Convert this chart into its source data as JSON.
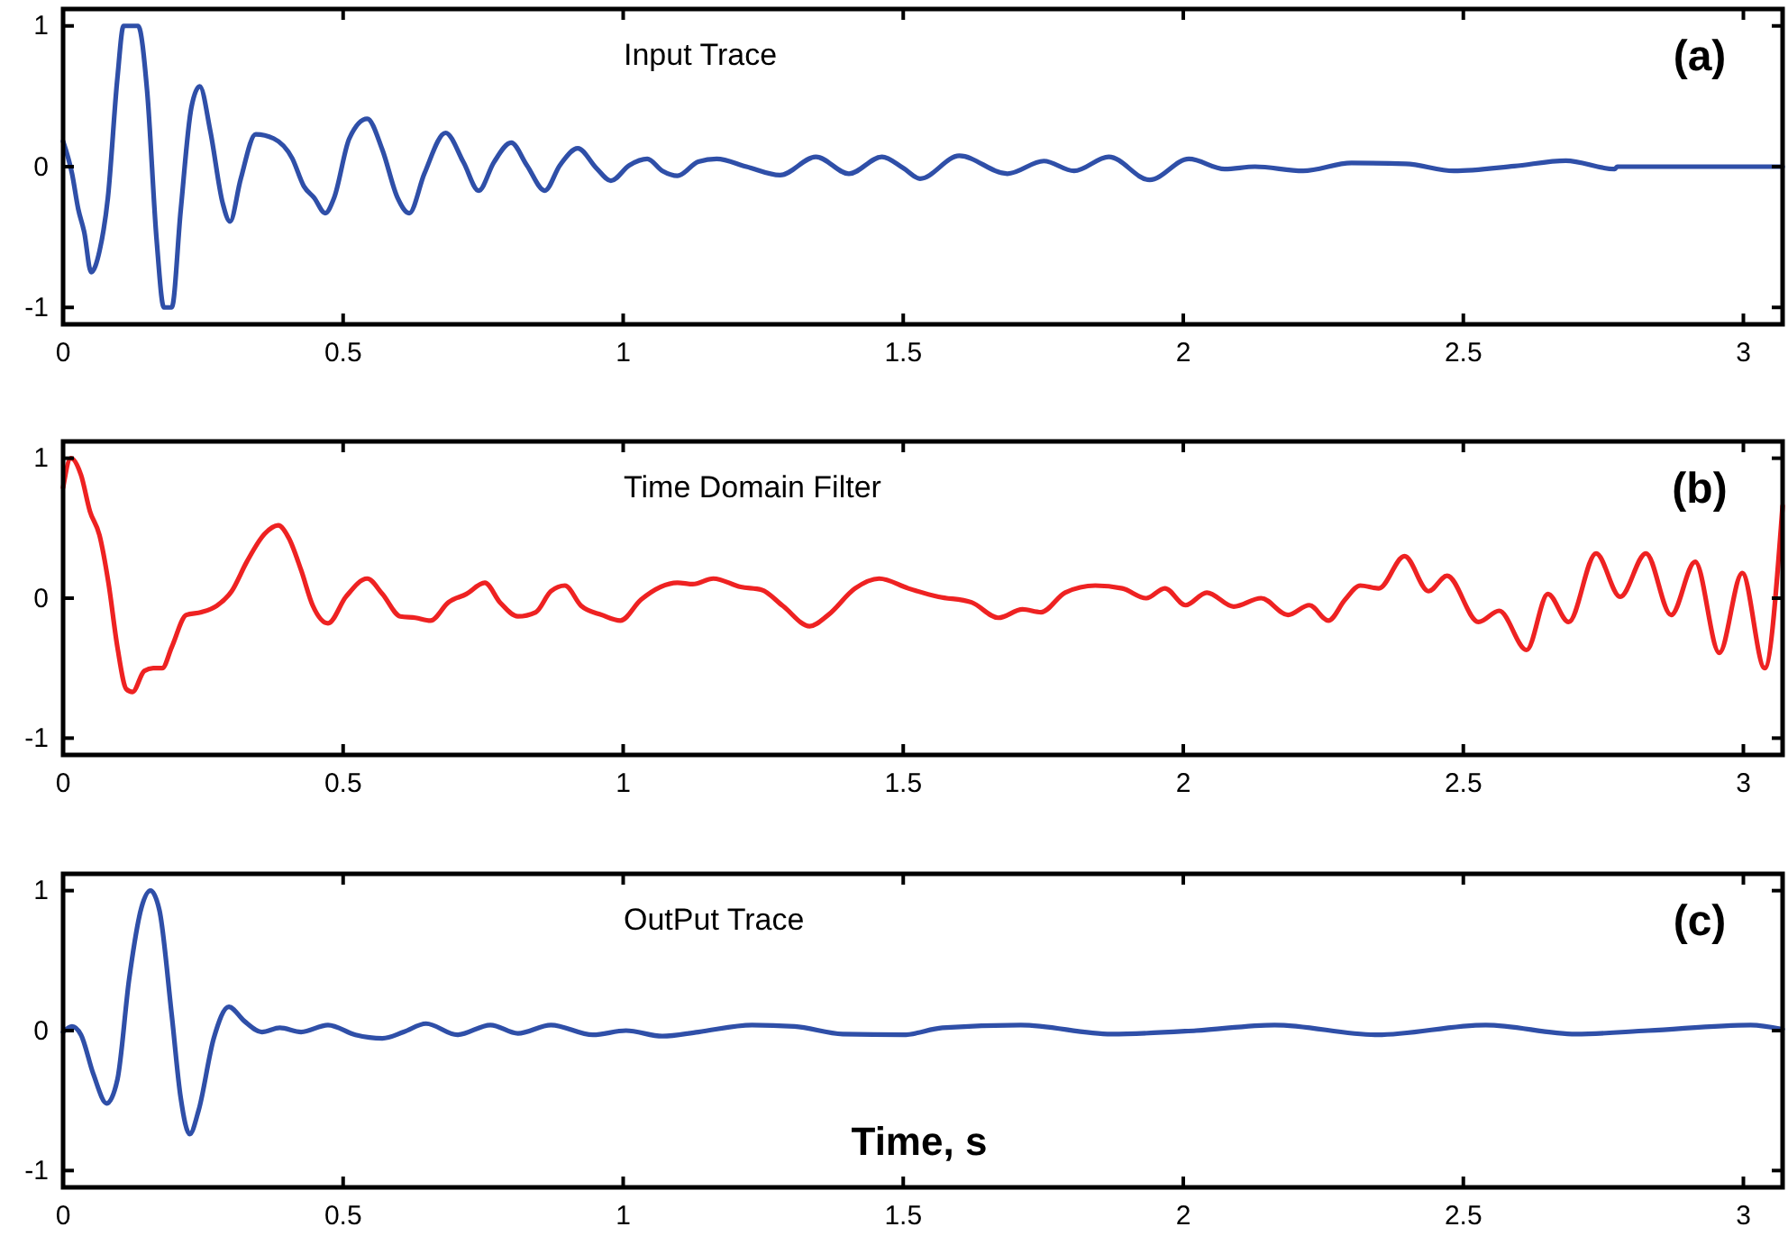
{
  "chart_data": [
    {
      "type": "line",
      "title": "Input Trace",
      "annotations": [
        "(a)"
      ],
      "xlim": [
        0,
        3.07
      ],
      "ylim": [
        -1.12,
        1.12
      ],
      "xticks": [
        0,
        0.5,
        1,
        1.5,
        2,
        2.5,
        3
      ],
      "yticks": [
        -1,
        0,
        1
      ],
      "x": [
        0,
        0.016,
        0.027,
        0.038,
        0.05,
        0.065,
        0.08,
        0.097,
        0.108,
        0.134,
        0.15,
        0.167,
        0.18,
        0.194,
        0.21,
        0.229,
        0.244,
        0.263,
        0.285,
        0.298,
        0.317,
        0.344,
        0.376,
        0.409,
        0.43,
        0.448,
        0.468,
        0.484,
        0.511,
        0.543,
        0.57,
        0.597,
        0.618,
        0.645,
        0.683,
        0.715,
        0.742,
        0.769,
        0.8,
        0.828,
        0.86,
        0.887,
        0.919,
        0.952,
        0.978,
        1.011,
        1.043,
        1.07,
        1.097,
        1.134,
        1.167,
        1.22,
        1.28,
        1.344,
        1.403,
        1.462,
        1.5,
        1.53,
        1.6,
        1.686,
        1.751,
        1.805,
        1.867,
        1.94,
        2.01,
        2.074,
        2.128,
        2.214,
        2.3,
        2.397,
        2.483,
        2.591,
        2.683,
        2.77,
        2.775,
        3.07
      ],
      "series": [
        {
          "color": "#2f4fa8",
          "values": [
            0.18,
            -0.05,
            -0.3,
            -0.47,
            -0.75,
            -0.6,
            -0.22,
            0.63,
            1.0,
            1.0,
            0.54,
            -0.52,
            -1.0,
            -1.0,
            -0.31,
            0.42,
            0.57,
            0.25,
            -0.26,
            -0.39,
            -0.09,
            0.23,
            0.2,
            0.06,
            -0.14,
            -0.22,
            -0.33,
            -0.22,
            0.2,
            0.34,
            0.12,
            -0.22,
            -0.33,
            -0.05,
            0.24,
            0.03,
            -0.17,
            0.03,
            0.17,
            0.01,
            -0.17,
            0.01,
            0.13,
            -0.01,
            -0.1,
            0.01,
            0.055,
            -0.03,
            -0.065,
            0.035,
            0.055,
            0,
            -0.06,
            0.07,
            -0.05,
            0.07,
            -0.01,
            -0.085,
            0.077,
            -0.05,
            0.04,
            -0.03,
            0.07,
            -0.094,
            0.055,
            -0.017,
            0,
            -0.03,
            0.026,
            0.02,
            -0.03,
            0.004,
            0.043,
            -0.017,
            0,
            0
          ]
        }
      ]
    },
    {
      "type": "line",
      "title": "Time Domain Filter",
      "annotations": [
        "(b)"
      ],
      "xlim": [
        0,
        3.07
      ],
      "ylim": [
        -1.12,
        1.12
      ],
      "xticks": [
        0,
        0.5,
        1,
        1.5,
        2,
        2.5,
        3
      ],
      "yticks": [
        -1,
        0,
        1
      ],
      "x": [
        0,
        0.014,
        0.032,
        0.048,
        0.065,
        0.081,
        0.097,
        0.113,
        0.124,
        0.145,
        0.161,
        0.177,
        0.194,
        0.22,
        0.247,
        0.274,
        0.301,
        0.328,
        0.36,
        0.384,
        0.403,
        0.425,
        0.446,
        0.473,
        0.505,
        0.543,
        0.57,
        0.602,
        0.629,
        0.656,
        0.688,
        0.72,
        0.753,
        0.78,
        0.812,
        0.844,
        0.871,
        0.896,
        0.925,
        0.962,
        0.995,
        1.032,
        1.097,
        1.124,
        1.161,
        1.21,
        1.247,
        1.285,
        1.333,
        1.366,
        1.414,
        1.457,
        1.509,
        1.563,
        1.622,
        1.67,
        1.713,
        1.746,
        1.789,
        1.843,
        1.891,
        1.934,
        1.967,
        2.004,
        2.042,
        2.09,
        2.139,
        2.187,
        2.225,
        2.259,
        2.289,
        2.316,
        2.349,
        2.395,
        2.438,
        2.471,
        2.527,
        2.564,
        2.613,
        2.651,
        2.688,
        2.737,
        2.78,
        2.826,
        2.871,
        2.914,
        2.957,
        2.998,
        3.038,
        3.07
      ],
      "series": [
        {
          "color": "#ee2222",
          "values": [
            0.79,
            1.0,
            0.88,
            0.62,
            0.45,
            0.11,
            -0.35,
            -0.65,
            -0.67,
            -0.52,
            -0.5,
            -0.5,
            -0.35,
            -0.12,
            -0.1,
            -0.055,
            0.05,
            0.26,
            0.46,
            0.52,
            0.43,
            0.2,
            -0.055,
            -0.18,
            0.01,
            0.14,
            0.03,
            -0.13,
            -0.14,
            -0.16,
            -0.03,
            0.03,
            0.11,
            -0.03,
            -0.13,
            -0.1,
            0.05,
            0.09,
            -0.055,
            -0.12,
            -0.16,
            -0.01,
            0.11,
            0.1,
            0.14,
            0.08,
            0.06,
            -0.055,
            -0.2,
            -0.12,
            0.07,
            0.14,
            0.07,
            0.01,
            -0.03,
            -0.14,
            -0.08,
            -0.1,
            0.04,
            0.09,
            0.07,
            0,
            0.07,
            -0.05,
            0.04,
            -0.06,
            0,
            -0.12,
            -0.05,
            -0.16,
            -0.01,
            0.09,
            0.07,
            0.3,
            0.05,
            0.16,
            -0.17,
            -0.09,
            -0.37,
            0.03,
            -0.17,
            0.32,
            0.01,
            0.32,
            -0.12,
            0.26,
            -0.39,
            0.18,
            -0.5,
            0.66
          ]
        }
      ]
    },
    {
      "type": "line",
      "title": "OutPut Trace",
      "annotations": [
        "(c)"
      ],
      "xlabel": "Time, s",
      "xlim": [
        0,
        3.07
      ],
      "ylim": [
        -1.12,
        1.12
      ],
      "xticks": [
        0,
        0.5,
        1,
        1.5,
        2,
        2.5,
        3
      ],
      "yticks": [
        -1,
        0,
        1
      ],
      "x": [
        0,
        0.016,
        0.032,
        0.054,
        0.078,
        0.097,
        0.118,
        0.14,
        0.156,
        0.172,
        0.194,
        0.21,
        0.226,
        0.242,
        0.269,
        0.296,
        0.323,
        0.355,
        0.387,
        0.425,
        0.473,
        0.522,
        0.57,
        0.608,
        0.648,
        0.704,
        0.763,
        0.812,
        0.871,
        0.946,
        1.005,
        1.07,
        1.134,
        1.23,
        1.306,
        1.392,
        1.5,
        1.57,
        1.71,
        1.872,
        2.023,
        2.163,
        2.346,
        2.54,
        2.701,
        2.83,
        3.013,
        3.07
      ],
      "series": [
        {
          "color": "#2f4fa8",
          "values": [
            -0.01,
            0.03,
            -0.03,
            -0.31,
            -0.52,
            -0.35,
            0.37,
            0.88,
            1.0,
            0.86,
            0.11,
            -0.48,
            -0.74,
            -0.57,
            -0.055,
            0.17,
            0.07,
            -0.01,
            0.02,
            -0.01,
            0.04,
            -0.03,
            -0.055,
            -0.01,
            0.05,
            -0.03,
            0.04,
            -0.02,
            0.04,
            -0.03,
            0,
            -0.04,
            -0.01,
            0.04,
            0.03,
            -0.025,
            -0.03,
            0.02,
            0.04,
            -0.025,
            0,
            0.04,
            -0.03,
            0.04,
            -0.025,
            0,
            0.04,
            0.01
          ]
        }
      ]
    }
  ]
}
